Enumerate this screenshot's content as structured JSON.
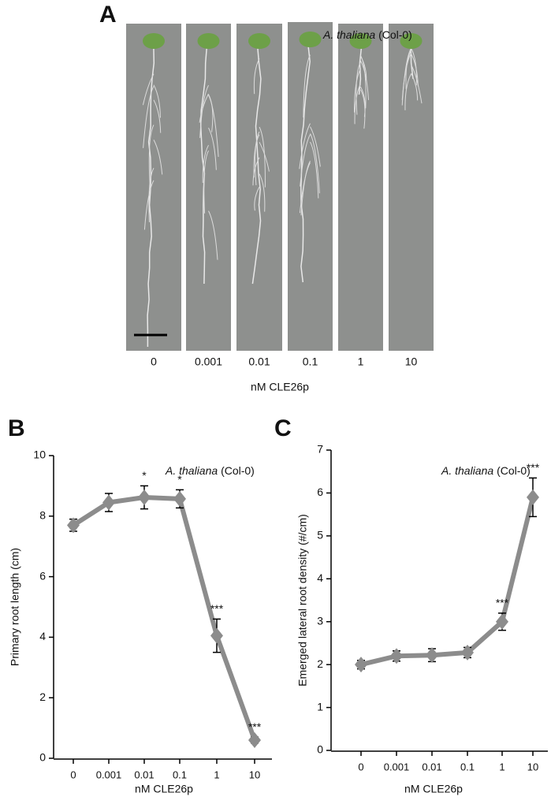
{
  "photo_panel": {
    "panel_label": "A",
    "species": "A. thaliana",
    "strain": "(Col-0)",
    "categories": [
      "0",
      "0.001",
      "0.01",
      "0.1",
      "1",
      "10"
    ],
    "axis_label": "nM CLE26p"
  },
  "chart_data": [
    {
      "type": "line",
      "panel_label": "B",
      "species": "A. thaliana",
      "strain": "(Col-0)",
      "x_label": "nM CLE26p",
      "y_label": "Primary root length (cm)",
      "categories": [
        "0",
        "0.001",
        "0.01",
        "0.1",
        "1",
        "10"
      ],
      "series": [
        {
          "color": "#8c8c8c",
          "values": [
            7.7,
            8.45,
            8.62,
            8.57,
            4.05,
            0.6
          ],
          "errors": [
            0.2,
            0.3,
            0.38,
            0.3,
            0.55,
            0.1
          ],
          "annotations": [
            null,
            null,
            "*",
            "*",
            "***",
            "***"
          ]
        }
      ],
      "ylim": [
        0,
        10
      ],
      "yticks": [
        0,
        2,
        4,
        6,
        8,
        10
      ]
    },
    {
      "type": "line",
      "panel_label": "C",
      "species": "A. thaliana",
      "strain": "(Col-0)",
      "x_label": "nM CLE26p",
      "y_label": "Emerged lateral root density (#/cm)",
      "categories": [
        "0",
        "0.001",
        "0.01",
        "0.1",
        "1",
        "10"
      ],
      "series": [
        {
          "color": "#8c8c8c",
          "values": [
            2.0,
            2.2,
            2.22,
            2.28,
            3.0,
            5.9
          ],
          "errors": [
            0.1,
            0.12,
            0.15,
            0.12,
            0.2,
            0.45
          ],
          "annotations": [
            null,
            null,
            null,
            null,
            "***",
            "***"
          ]
        }
      ],
      "ylim": [
        0,
        7
      ],
      "yticks": [
        0,
        1,
        2,
        3,
        4,
        5,
        6,
        7
      ]
    }
  ]
}
